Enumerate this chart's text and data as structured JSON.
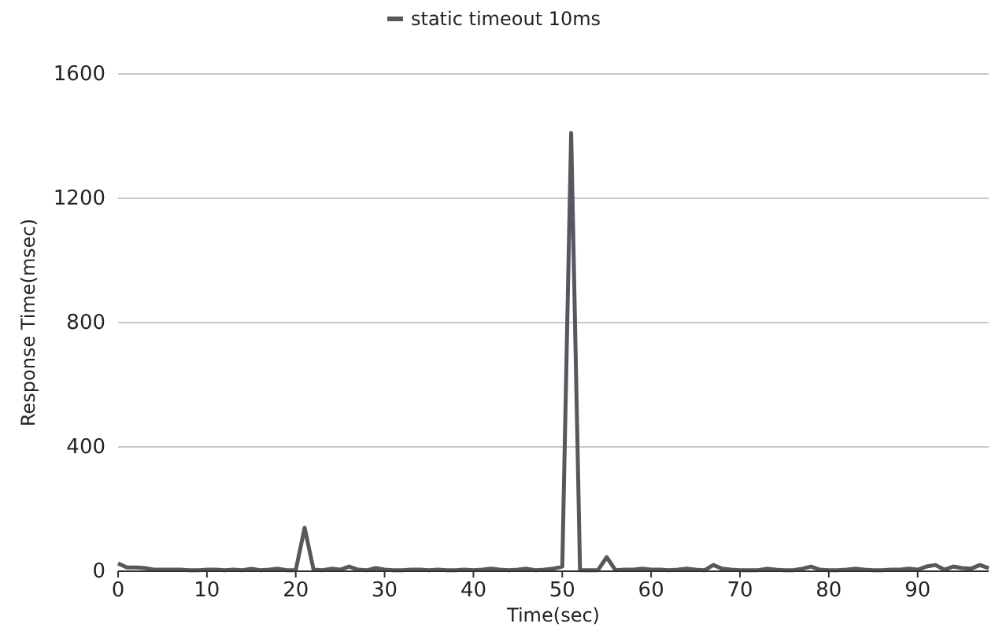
{
  "chart_data": {
    "type": "line",
    "xlabel": "Time(sec)",
    "ylabel": "Response Time(msec)",
    "x": [
      0,
      1,
      2,
      3,
      4,
      5,
      6,
      7,
      8,
      9,
      10,
      11,
      12,
      13,
      14,
      15,
      16,
      17,
      18,
      19,
      20,
      21,
      22,
      23,
      24,
      25,
      26,
      27,
      28,
      29,
      30,
      31,
      32,
      33,
      34,
      35,
      36,
      37,
      38,
      39,
      40,
      41,
      42,
      43,
      44,
      45,
      46,
      47,
      48,
      49,
      50,
      51,
      52,
      53,
      54,
      55,
      56,
      57,
      58,
      59,
      60,
      61,
      62,
      63,
      64,
      65,
      66,
      67,
      68,
      69,
      70,
      71,
      72,
      73,
      74,
      75,
      76,
      77,
      78,
      79,
      80,
      81,
      82,
      83,
      84,
      85,
      86,
      87,
      88,
      89,
      90,
      91,
      92,
      93,
      94,
      95,
      96,
      97,
      98
    ],
    "series": [
      {
        "name": "static timeout 10ms",
        "color": "#55585e",
        "values": [
          25,
          12,
          12,
          10,
          5,
          5,
          5,
          5,
          3,
          3,
          5,
          5,
          3,
          5,
          3,
          8,
          3,
          5,
          8,
          3,
          3,
          140,
          5,
          3,
          8,
          5,
          15,
          5,
          3,
          10,
          5,
          3,
          3,
          5,
          5,
          3,
          5,
          3,
          3,
          5,
          3,
          5,
          8,
          5,
          3,
          5,
          8,
          3,
          5,
          8,
          15,
          1410,
          3,
          3,
          3,
          45,
          3,
          5,
          5,
          8,
          5,
          5,
          3,
          5,
          8,
          5,
          3,
          20,
          8,
          5,
          3,
          3,
          3,
          8,
          5,
          3,
          3,
          8,
          15,
          5,
          3,
          3,
          5,
          8,
          5,
          3,
          3,
          5,
          5,
          8,
          5,
          15,
          20,
          5,
          15,
          10,
          8,
          20,
          10
        ]
      }
    ],
    "xlim": [
      0,
      98
    ],
    "ylim": [
      0,
      1600
    ],
    "xticks": [
      0,
      10,
      20,
      30,
      40,
      50,
      60,
      70,
      80,
      90
    ],
    "yticks": [
      0,
      400,
      800,
      1200,
      1600
    ],
    "grid": "y",
    "legend": "top",
    "marker": "none",
    "line_style": "solid"
  }
}
